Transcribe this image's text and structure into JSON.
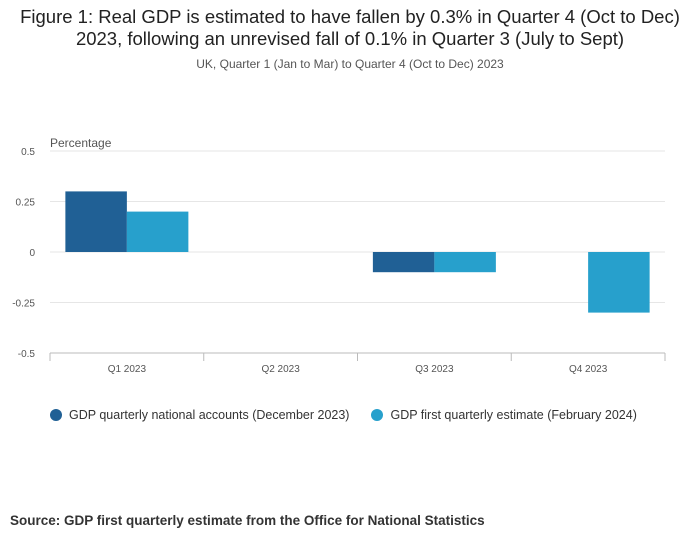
{
  "colors": {
    "series1": "#206095",
    "series2": "#27a0cc",
    "grid": "#e6e6e6",
    "axis": "#bbbbbb",
    "text": "#555555"
  },
  "chart_data": {
    "type": "bar",
    "title": "Figure 1: Real GDP is estimated to have fallen by 0.3% in Quarter 4 (Oct to Dec) 2023, following an unrevised fall of 0.1% in Quarter 3 (July to Sept)",
    "subtitle": "UK, Quarter 1 (Jan to Mar) to Quarter 4 (Oct to Dec) 2023",
    "ylabel": "Percentage",
    "xlabel": "",
    "ylim": [
      -0.5,
      0.5
    ],
    "yticks": [
      0.5,
      0.25,
      0,
      -0.25,
      -0.5
    ],
    "ytick_labels": [
      "0.5",
      "0.25",
      "0",
      "-0.25",
      "-0.5"
    ],
    "categories": [
      "Q1 2023",
      "Q2 2023",
      "Q3 2023",
      "Q4 2023"
    ],
    "series": [
      {
        "name": "GDP quarterly national accounts (December 2023)",
        "values": [
          0.3,
          null,
          -0.1,
          null
        ]
      },
      {
        "name": "GDP first quarterly estimate (February 2024)",
        "values": [
          0.2,
          null,
          -0.1,
          -0.3
        ]
      }
    ],
    "legend_position": "bottom-left",
    "grid": true
  },
  "source": "Source: GDP first quarterly estimate from the Office for National Statistics"
}
